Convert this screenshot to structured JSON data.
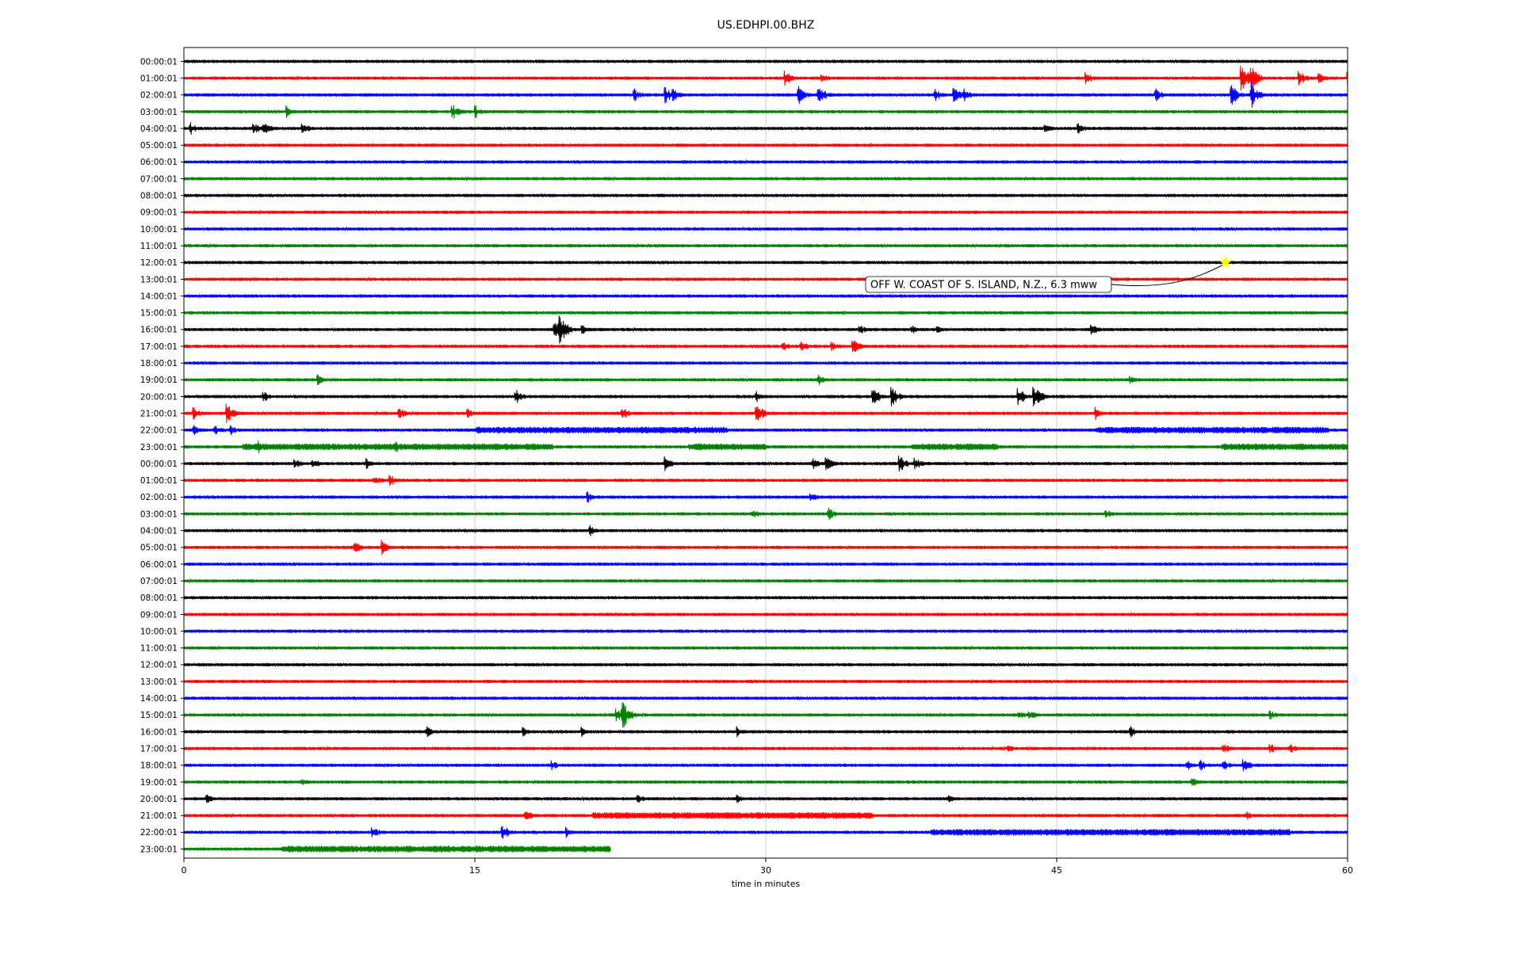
{
  "chart_data": {
    "type": "line",
    "chart_kind": "seismogram dayplot",
    "title": "US.EDHPI.00.BHZ",
    "xlabel": "time in minutes",
    "ylabel": "",
    "xlim": [
      0,
      60
    ],
    "x_ticks": [
      0,
      15,
      30,
      45,
      60
    ],
    "grid": "vertical lines at 15 and 45 minutes",
    "legend": "none",
    "colors": [
      "#000000",
      "#ff0000",
      "#0000ff",
      "#008000"
    ],
    "row_labels": [
      "00:00:01",
      "01:00:01",
      "02:00:01",
      "03:00:01",
      "04:00:01",
      "05:00:01",
      "06:00:01",
      "07:00:01",
      "08:00:01",
      "09:00:01",
      "10:00:01",
      "11:00:01",
      "12:00:01",
      "13:00:01",
      "14:00:01",
      "15:00:01",
      "16:00:01",
      "17:00:01",
      "18:00:01",
      "19:00:01",
      "20:00:01",
      "21:00:01",
      "22:00:01",
      "23:00:01",
      "00:00:01",
      "01:00:01",
      "02:00:01",
      "03:00:01",
      "04:00:01",
      "05:00:01",
      "06:00:01",
      "07:00:01",
      "08:00:01",
      "09:00:01",
      "10:00:01",
      "11:00:01",
      "12:00:01",
      "13:00:01",
      "14:00:01",
      "15:00:01",
      "16:00:01",
      "17:00:01",
      "18:00:01",
      "19:00:01",
      "20:00:01",
      "21:00:01",
      "22:00:01",
      "23:00:01"
    ],
    "last_row_end_minute": 22,
    "bursts": [
      {
        "row": 1,
        "minutes": [
          31,
          32.9,
          46.5,
          54.5,
          55,
          57.5,
          58.5,
          60
        ],
        "amp": [
          0.7,
          0.5,
          0.6,
          1.6,
          1.2,
          0.7,
          0.6,
          0.6
        ]
      },
      {
        "row": 2,
        "minutes": [
          23.2,
          24.8,
          25.2,
          31.7,
          32.7,
          38.7,
          39.7,
          40.2,
          50.1,
          54,
          55
        ],
        "amp": [
          0.6,
          0.8,
          0.6,
          0.8,
          1.0,
          0.6,
          0.7,
          0.6,
          0.6,
          1.0,
          1.2
        ]
      },
      {
        "row": 3,
        "minutes": [
          5.3,
          13.8,
          15
        ],
        "amp": [
          0.6,
          0.8,
          0.6
        ]
      },
      {
        "row": 4,
        "minutes": [
          0.3,
          3.6,
          4.1,
          6.1,
          44.4,
          46.1
        ],
        "amp": [
          0.6,
          0.6,
          0.7,
          0.6,
          0.5,
          0.6
        ]
      },
      {
        "row": 16,
        "minutes": [
          19.1,
          19.4,
          20.5,
          34.8,
          37.5,
          38.8,
          46.8
        ],
        "amp": [
          0.9,
          1.3,
          0.5,
          0.5,
          0.5,
          0.5,
          0.5
        ]
      },
      {
        "row": 17,
        "minutes": [
          30.9,
          31.8,
          33.4,
          34.5
        ],
        "amp": [
          0.6,
          0.6,
          0.5,
          0.7
        ]
      },
      {
        "row": 19,
        "minutes": [
          6.9,
          32.7,
          48.8
        ],
        "amp": [
          0.5,
          0.5,
          0.5
        ]
      },
      {
        "row": 20,
        "minutes": [
          4.1,
          17.1,
          29.5,
          35.5,
          36.5,
          43,
          43.8,
          44
        ],
        "amp": [
          0.5,
          0.7,
          0.5,
          0.9,
          0.9,
          0.9,
          1.0,
          0.7
        ]
      },
      {
        "row": 21,
        "minutes": [
          0.5,
          2.2,
          11.1,
          14.6,
          22.6,
          29.5,
          47
        ],
        "amp": [
          0.6,
          0.9,
          0.5,
          0.5,
          0.6,
          1.0,
          0.6
        ]
      },
      {
        "row": 22,
        "minutes": [
          0.5,
          1.6,
          2.4,
          16,
          25,
          48.5
        ],
        "amp": [
          0.6,
          0.5,
          0.5,
          0.3,
          0.3,
          0.3
        ]
      },
      {
        "row": 23,
        "minutes": [
          3.8,
          10.9
        ],
        "amp": [
          0.6,
          0.5
        ]
      },
      {
        "row": 24,
        "minutes": [
          5.7,
          6.6,
          9.4,
          24.8,
          32.4,
          33.1,
          36.9,
          37.7
        ],
        "amp": [
          0.5,
          0.6,
          0.5,
          0.7,
          0.6,
          0.7,
          0.8,
          0.6
        ]
      },
      {
        "row": 25,
        "minutes": [
          9.8,
          10.6
        ],
        "amp": [
          0.6,
          0.6
        ]
      },
      {
        "row": 26,
        "minutes": [
          20.8,
          32.3
        ],
        "amp": [
          0.5,
          0.5
        ]
      },
      {
        "row": 27,
        "minutes": [
          29.3,
          33.2,
          47.5
        ],
        "amp": [
          0.5,
          0.6,
          0.5
        ]
      },
      {
        "row": 28,
        "minutes": [
          20.9
        ],
        "amp": [
          0.5
        ]
      },
      {
        "row": 29,
        "minutes": [
          8.8,
          10.2
        ],
        "amp": [
          0.6,
          0.7
        ]
      },
      {
        "row": 39,
        "minutes": [
          22.3,
          22.6,
          43,
          43.6,
          56
        ],
        "amp": [
          0.6,
          1.3,
          0.5,
          0.5,
          0.5
        ]
      },
      {
        "row": 40,
        "minutes": [
          12.5,
          17.5,
          20.5,
          28.5,
          48.8
        ],
        "amp": [
          0.5,
          0.5,
          0.5,
          0.5,
          0.5
        ]
      },
      {
        "row": 41,
        "minutes": [
          42.5,
          53.6,
          56,
          57
        ],
        "amp": [
          0.4,
          0.5,
          0.5,
          0.5
        ]
      },
      {
        "row": 42,
        "minutes": [
          19,
          51.7,
          52.4,
          53.6,
          54.6
        ],
        "amp": [
          0.5,
          0.6,
          0.5,
          0.5,
          0.7
        ]
      },
      {
        "row": 43,
        "minutes": [
          6.1,
          52
        ],
        "amp": [
          0.4,
          0.4
        ]
      },
      {
        "row": 44,
        "minutes": [
          1.2,
          23.4,
          28.5,
          39.4
        ],
        "amp": [
          0.4,
          0.4,
          0.4,
          0.4
        ]
      },
      {
        "row": 45,
        "minutes": [
          17.6,
          54.8
        ],
        "amp": [
          0.6,
          0.4
        ]
      },
      {
        "row": 46,
        "minutes": [
          9.7,
          16.4,
          19.7
        ],
        "amp": [
          0.6,
          0.8,
          0.5
        ]
      }
    ],
    "noise_bands": [
      {
        "row": 22,
        "from": 15,
        "to": 28
      },
      {
        "row": 22,
        "from": 47,
        "to": 59
      },
      {
        "row": 23,
        "from": 3,
        "to": 19
      },
      {
        "row": 23,
        "from": 26,
        "to": 30
      },
      {
        "row": 23,
        "from": 37.5,
        "to": 42
      },
      {
        "row": 23,
        "from": 53.5,
        "to": 60
      },
      {
        "row": 45,
        "from": 21,
        "to": 35.5
      },
      {
        "row": 46,
        "from": 38.5,
        "to": 57
      },
      {
        "row": 47,
        "from": 5,
        "to": 22
      }
    ],
    "annotation": {
      "text": "OFF W. COAST OF S. ISLAND, N.Z., 6.3 mww",
      "row": 12,
      "minute": 53.7,
      "marker": "star",
      "marker_color": "#ffff00"
    }
  }
}
